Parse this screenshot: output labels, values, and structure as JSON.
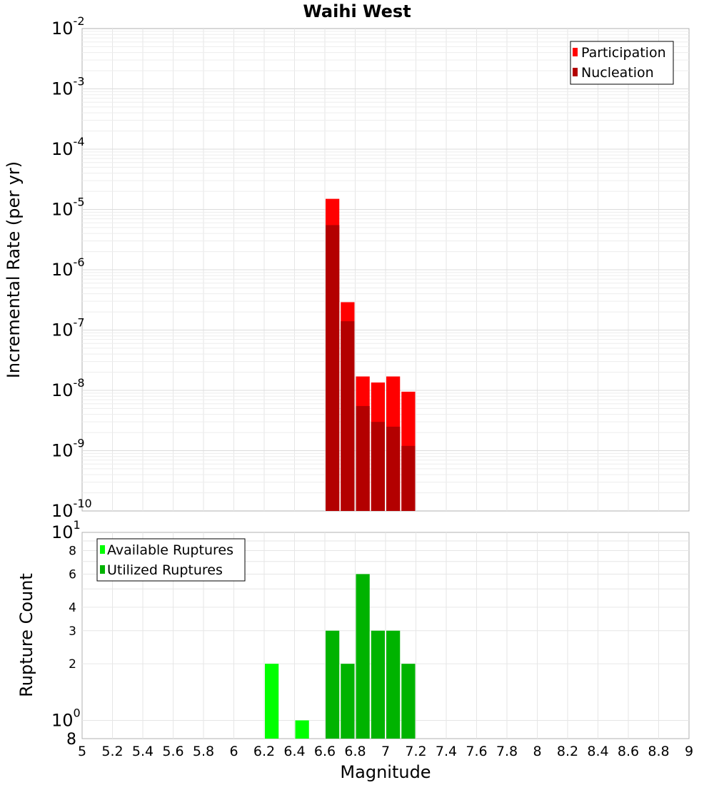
{
  "chart_data": [
    {
      "type": "bar",
      "title": "Waihi West",
      "xlabel": "Magnitude",
      "ylabel": "Incremental Rate (per yr)",
      "xlim": [
        5,
        9
      ],
      "ylim": [
        1e-10,
        0.01
      ],
      "yscale": "log",
      "grid": true,
      "legend_position": "top-right",
      "bar_width": 0.1,
      "x_ticks": [
        "5",
        "5.2",
        "5.4",
        "5.6",
        "5.8",
        "6",
        "6.2",
        "6.4",
        "6.6",
        "6.8",
        "7",
        "7.2",
        "7.4",
        "7.6",
        "7.8",
        "8",
        "8.2",
        "8.4",
        "8.6",
        "8.8",
        "9"
      ],
      "y_tick_exponents": [
        "-10",
        "-9",
        "-8",
        "-7",
        "-6",
        "-5",
        "-4",
        "-3",
        "-2"
      ],
      "x": [
        6.65,
        6.75,
        6.85,
        6.95,
        7.05,
        7.15
      ],
      "series": [
        {
          "name": "Participation",
          "color": "#ff0000",
          "values": [
            1.5e-05,
            2.9e-07,
            1.7e-08,
            1.35e-08,
            1.7e-08,
            9.5e-09
          ]
        },
        {
          "name": "Nucleation",
          "color": "#b30000",
          "values": [
            5.5e-06,
            1.4e-07,
            5.5e-09,
            3e-09,
            2.5e-09,
            1.2e-09
          ]
        }
      ]
    },
    {
      "type": "bar",
      "xlabel": "Magnitude",
      "ylabel": "Rupture Count",
      "xlim": [
        5,
        9
      ],
      "ylim": [
        0.8,
        10
      ],
      "yscale": "log",
      "grid": true,
      "legend_position": "top-left",
      "bar_width": 0.1,
      "y_ticks_minor": [
        {
          "value": 8,
          "label": "8"
        },
        {
          "value": 6,
          "label": "6"
        },
        {
          "value": 4,
          "label": "4"
        },
        {
          "value": 3,
          "label": "3"
        },
        {
          "value": 2,
          "label": "2"
        }
      ],
      "y_ticks_major": [
        {
          "value": 10,
          "base": "10",
          "exp": "1"
        },
        {
          "value": 1,
          "base": "10",
          "exp": "0"
        },
        {
          "value": 0.8,
          "base": "8",
          "exp": ""
        }
      ],
      "series": [
        {
          "name": "Available Ruptures",
          "color": "#00ff00",
          "x": [
            6.25,
            6.45
          ],
          "values": [
            2,
            1
          ]
        },
        {
          "name": "Utilized Ruptures",
          "color": "#00b300",
          "x": [
            6.65,
            6.75,
            6.85,
            6.95,
            7.05,
            7.15
          ],
          "values": [
            3,
            2,
            6,
            3,
            3,
            2
          ]
        }
      ]
    }
  ]
}
